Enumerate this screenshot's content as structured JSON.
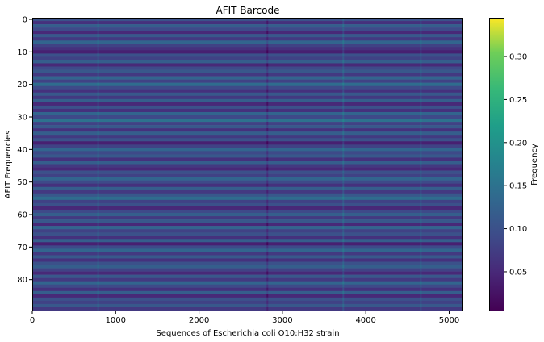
{
  "chart_data": {
    "type": "heatmap",
    "title": "AFIT Barcode",
    "xlabel": "Sequences of Escherichia coli O10:H32 strain",
    "ylabel": "AFIT Frequencies",
    "xlim": [
      0,
      5160
    ],
    "ylim": [
      89.5,
      -0.5
    ],
    "x_ticks": [
      0,
      1000,
      2000,
      3000,
      4000,
      5000
    ],
    "y_ticks": [
      0,
      10,
      20,
      30,
      40,
      50,
      60,
      70,
      80
    ],
    "n_rows": 90,
    "n_cols": 5160,
    "colormap": "viridis",
    "colorbar": {
      "label": "Frequency",
      "range": [
        0.005,
        0.345
      ],
      "ticks": [
        0.05,
        0.1,
        0.15,
        0.2,
        0.25,
        0.3
      ],
      "tick_labels": [
        "0.05",
        "0.10",
        "0.15",
        "0.20",
        "0.25",
        "0.30"
      ]
    },
    "row_levels": [
      0.1,
      0.06,
      0.12,
      0.09,
      0.05,
      0.11,
      0.07,
      0.13,
      0.08,
      0.06,
      0.04,
      0.1,
      0.08,
      0.12,
      0.05,
      0.09,
      0.11,
      0.07,
      0.13,
      0.08,
      0.14,
      0.09,
      0.06,
      0.11,
      0.07,
      0.12,
      0.05,
      0.1,
      0.06,
      0.13,
      0.09,
      0.15,
      0.08,
      0.11,
      0.06,
      0.12,
      0.07,
      0.1,
      0.04,
      0.08,
      0.13,
      0.09,
      0.11,
      0.06,
      0.12,
      0.07,
      0.05,
      0.1,
      0.08,
      0.13,
      0.09,
      0.06,
      0.12,
      0.07,
      0.11,
      0.14,
      0.08,
      0.1,
      0.05,
      0.09,
      0.12,
      0.07,
      0.11,
      0.05,
      0.13,
      0.08,
      0.1,
      0.06,
      0.12,
      0.04,
      0.09,
      0.13,
      0.07,
      0.11,
      0.06,
      0.1,
      0.12,
      0.08,
      0.05,
      0.11,
      0.07,
      0.13,
      0.09,
      0.06,
      0.12,
      0.05,
      0.1,
      0.08,
      0.11,
      0.07
    ],
    "column_highlights": [
      {
        "x": 790,
        "delta": 0.025
      },
      {
        "x": 2820,
        "delta": -0.03
      },
      {
        "x": 3730,
        "delta": 0.03
      },
      {
        "x": 4660,
        "delta": 0.025
      }
    ]
  }
}
